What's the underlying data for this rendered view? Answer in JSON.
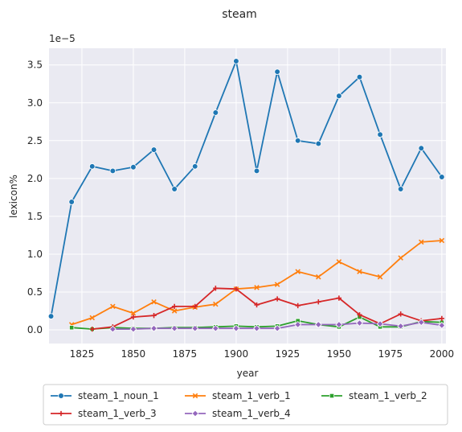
{
  "chart_data": {
    "type": "line",
    "title": "steam",
    "xlabel": "year",
    "ylabel": "lexicon%",
    "y_offset_label": "1e−5",
    "xlim": [
      1809,
      2002
    ],
    "ylim": [
      -0.18,
      3.72
    ],
    "x_ticks": [
      1825,
      1850,
      1875,
      1900,
      1925,
      1950,
      1975,
      2000
    ],
    "y_ticks": [
      0.0,
      0.5,
      1.0,
      1.5,
      2.0,
      2.5,
      3.0,
      3.5
    ],
    "y_tick_labels": [
      "0.0",
      "0.5",
      "1.0",
      "1.5",
      "2.0",
      "2.5",
      "3.0",
      "3.5"
    ],
    "grid": true,
    "legend_position": "below",
    "series": [
      {
        "name": "steam_1_noun_1",
        "color": "#1f77b4",
        "marker": "circle",
        "x": [
          1810,
          1820,
          1830,
          1840,
          1850,
          1860,
          1870,
          1880,
          1890,
          1900,
          1910,
          1920,
          1930,
          1940,
          1950,
          1960,
          1970,
          1980,
          1990,
          2000
        ],
        "y": [
          0.18,
          1.69,
          2.16,
          2.1,
          2.15,
          2.38,
          1.86,
          2.16,
          2.87,
          3.55,
          2.1,
          3.41,
          2.5,
          2.46,
          3.09,
          3.34,
          2.58,
          1.86,
          2.4,
          2.02
        ]
      },
      {
        "name": "steam_1_verb_1",
        "color": "#ff7f0e",
        "marker": "x",
        "x": [
          1820,
          1830,
          1840,
          1850,
          1860,
          1870,
          1880,
          1890,
          1900,
          1910,
          1920,
          1930,
          1940,
          1950,
          1960,
          1970,
          1980,
          1990,
          2000
        ],
        "y": [
          0.07,
          0.16,
          0.31,
          0.22,
          0.37,
          0.25,
          0.3,
          0.34,
          0.54,
          0.56,
          0.6,
          0.77,
          0.7,
          0.9,
          0.77,
          0.7,
          0.95,
          1.16,
          1.18
        ]
      },
      {
        "name": "steam_1_verb_2",
        "color": "#2ca02c",
        "marker": "square",
        "x": [
          1820,
          1830,
          1840,
          1850,
          1860,
          1870,
          1880,
          1890,
          1900,
          1910,
          1920,
          1930,
          1940,
          1950,
          1960,
          1970,
          1980,
          1990,
          2000
        ],
        "y": [
          0.03,
          0.01,
          0.03,
          0.02,
          0.02,
          0.03,
          0.03,
          0.04,
          0.05,
          0.04,
          0.05,
          0.12,
          0.07,
          0.04,
          0.17,
          0.04,
          0.04,
          0.11,
          0.1
        ]
      },
      {
        "name": "steam_1_verb_3",
        "color": "#d62728",
        "marker": "plus",
        "x": [
          1830,
          1840,
          1850,
          1860,
          1870,
          1880,
          1890,
          1900,
          1910,
          1920,
          1930,
          1940,
          1950,
          1960,
          1970,
          1980,
          1990,
          2000
        ],
        "y": [
          0.01,
          0.04,
          0.17,
          0.19,
          0.31,
          0.31,
          0.55,
          0.54,
          0.33,
          0.41,
          0.32,
          0.37,
          0.42,
          0.2,
          0.08,
          0.21,
          0.12,
          0.15
        ]
      },
      {
        "name": "steam_1_verb_4",
        "color": "#9467bd",
        "marker": "diamond",
        "x": [
          1840,
          1850,
          1860,
          1870,
          1880,
          1890,
          1900,
          1910,
          1920,
          1930,
          1940,
          1950,
          1960,
          1970,
          1980,
          1990,
          2000
        ],
        "y": [
          0.01,
          0.01,
          0.02,
          0.02,
          0.02,
          0.02,
          0.02,
          0.02,
          0.02,
          0.07,
          0.07,
          0.07,
          0.09,
          0.08,
          0.05,
          0.1,
          0.06
        ]
      }
    ]
  }
}
